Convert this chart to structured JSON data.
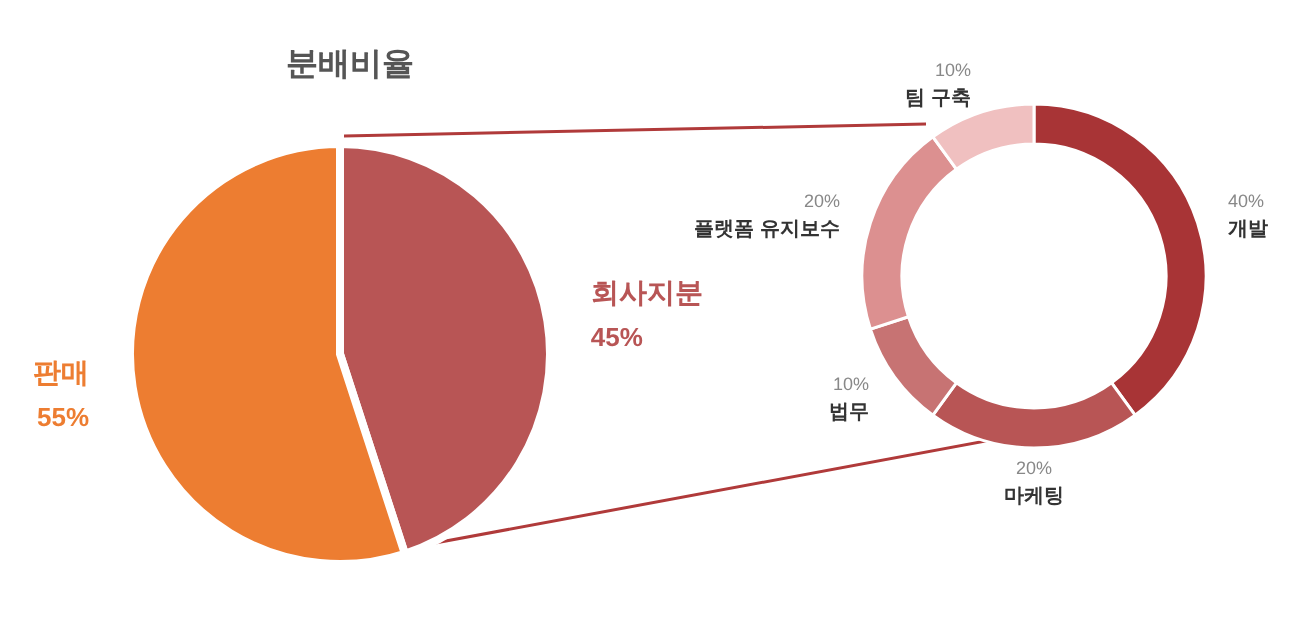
{
  "chart_data": [
    {
      "type": "pie",
      "title": "분배비율",
      "categories": [
        "회사지분",
        "판매"
      ],
      "values": [
        45,
        55
      ],
      "colors": [
        "#b85555",
        "#ed7d31"
      ],
      "value_labels": [
        "45%",
        "55%"
      ]
    },
    {
      "type": "donut",
      "categories": [
        "개발",
        "마케팅",
        "법무",
        "플랫폼 유지보수",
        "팀 구축"
      ],
      "values": [
        40,
        20,
        10,
        20,
        10
      ],
      "colors": [
        "#a83436",
        "#b85555",
        "#c77373",
        "#dc9090",
        "#f0c0c0"
      ],
      "value_labels": [
        "40%",
        "20%",
        "10%",
        "20%",
        "10%"
      ]
    }
  ]
}
